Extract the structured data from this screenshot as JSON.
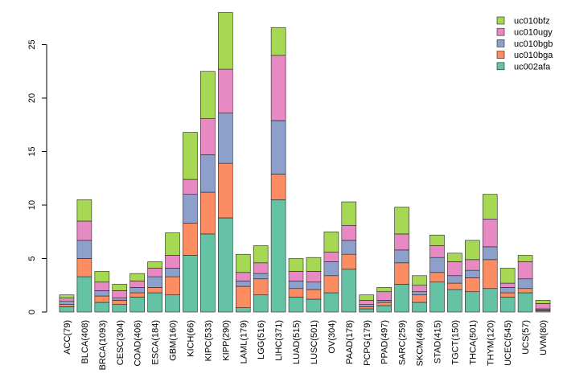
{
  "chart_data": {
    "type": "bar",
    "stacked": true,
    "title": "",
    "xlabel": "",
    "ylabel": "",
    "ylim": [
      0,
      28
    ],
    "yticks": [
      0,
      5,
      10,
      15,
      20,
      25
    ],
    "legend_position": "top-right",
    "categories": [
      "ACC(79)",
      "BLCA(408)",
      "BRCA(1093)",
      "CESC(304)",
      "COAD(406)",
      "ESCA(184)",
      "GBM(160)",
      "KICH(66)",
      "KIPC(533)",
      "KIPP(290)",
      "LAML(179)",
      "LGG(516)",
      "LIHC(371)",
      "LUAD(515)",
      "LUSC(501)",
      "OV(304)",
      "PAAD(178)",
      "PCPG(179)",
      "PPAD(497)",
      "SARC(259)",
      "SKCM(469)",
      "STAD(415)",
      "TGCT(150)",
      "THCA(501)",
      "THYM(120)",
      "UCEC(545)",
      "UCS(57)",
      "UVM(80)"
    ],
    "series": [
      {
        "name": "uc002afa",
        "color": "#66c2a5",
        "values": [
          0.5,
          3.3,
          0.9,
          0.7,
          1.4,
          1.8,
          1.6,
          5.3,
          7.3,
          8.8,
          0.4,
          1.6,
          10.5,
          1.4,
          1.2,
          1.8,
          4.0,
          0.3,
          0.6,
          2.6,
          0.9,
          2.8,
          2.1,
          1.9,
          2.2,
          1.4,
          1.8,
          0.1
        ]
      },
      {
        "name": "uc010bga",
        "color": "#fc8d62",
        "values": [
          0.2,
          1.7,
          0.6,
          0.4,
          0.4,
          0.5,
          1.7,
          3.0,
          3.9,
          5.1,
          2.0,
          1.5,
          2.4,
          0.8,
          0.9,
          1.6,
          1.4,
          0.2,
          0.3,
          2.0,
          0.7,
          0.9,
          0.6,
          1.3,
          2.7,
          0.4,
          0.4,
          0.1
        ]
      },
      {
        "name": "uc010bgb",
        "color": "#8da0cb",
        "values": [
          0.3,
          1.7,
          0.5,
          0.2,
          0.5,
          1.0,
          0.8,
          2.7,
          3.5,
          4.7,
          0.5,
          0.5,
          5.0,
          0.7,
          0.7,
          1.3,
          1.3,
          0.2,
          0.2,
          1.2,
          0.3,
          1.4,
          0.7,
          0.7,
          1.2,
          0.5,
          0.9,
          0.1
        ]
      },
      {
        "name": "uc010ugy",
        "color": "#e78ac3",
        "values": [
          0.3,
          1.8,
          0.8,
          0.7,
          0.6,
          0.8,
          1.2,
          1.4,
          3.4,
          4.1,
          0.8,
          1.0,
          6.1,
          0.9,
          1.0,
          0.9,
          1.4,
          0.4,
          0.8,
          1.5,
          0.6,
          1.1,
          1.3,
          1.0,
          2.6,
          0.4,
          1.6,
          0.5
        ]
      },
      {
        "name": "uc010bfz",
        "color": "#a6d854",
        "values": [
          0.3,
          2.0,
          1.0,
          0.6,
          0.7,
          0.6,
          2.1,
          4.4,
          4.4,
          5.3,
          1.7,
          1.6,
          2.6,
          1.2,
          1.3,
          1.9,
          2.2,
          0.5,
          0.4,
          2.5,
          0.9,
          1.0,
          0.8,
          1.8,
          2.3,
          1.4,
          0.6,
          0.3
        ]
      }
    ]
  }
}
